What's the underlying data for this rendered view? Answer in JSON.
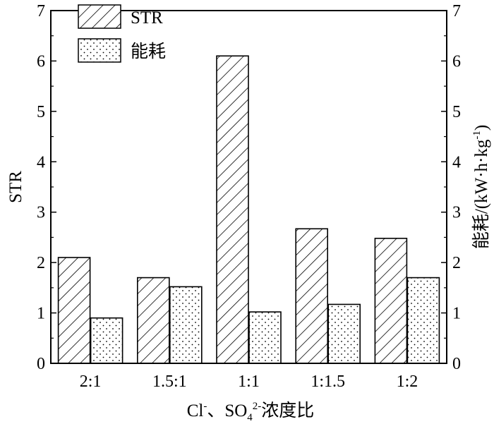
{
  "chart_data": {
    "type": "bar",
    "categories": [
      "2:1",
      "1.5:1",
      "1:1",
      "1:1.5",
      "1:2"
    ],
    "series": [
      {
        "name": "STR",
        "axis": "left",
        "pattern": "hatch",
        "values": [
          2.1,
          1.7,
          6.1,
          2.67,
          2.48
        ]
      },
      {
        "name": "能耗",
        "axis": "right",
        "pattern": "dots",
        "values": [
          0.9,
          1.52,
          1.02,
          1.17,
          1.7
        ]
      }
    ],
    "xlabel": {
      "pre": "Cl",
      "sup1": "-",
      "mid": "、SO",
      "sub": "4",
      "sup2": "2-",
      "post": "浓度比"
    },
    "ylabel": "STR",
    "y2label": {
      "pre": "能耗/(kW·h·kg",
      "sup": "-1",
      "post": ")"
    },
    "ylim": [
      0,
      7
    ],
    "y2lim": [
      0,
      7
    ],
    "yticks": [
      "0",
      "1",
      "2",
      "3",
      "4",
      "5",
      "6",
      "7"
    ],
    "y2ticks": [
      "0",
      "1",
      "2",
      "3",
      "4",
      "5",
      "6",
      "7"
    ],
    "legend": "top-left",
    "grid": false,
    "colors": {
      "bar_fill": "#ffffff",
      "stroke": "#000000"
    }
  }
}
